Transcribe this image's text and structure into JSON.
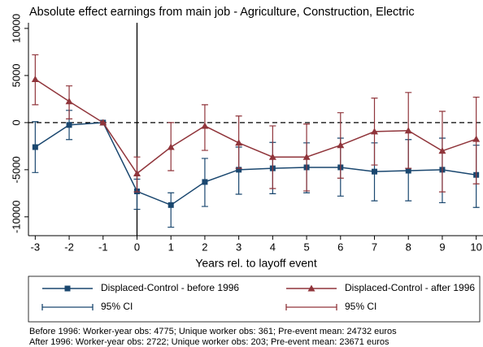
{
  "chart_data": {
    "type": "errorbar-line",
    "title": "Absolute effect earnings from main job - Agriculture, Construction, Electric",
    "x_label": "Years rel. to layoff event",
    "x": [
      -3,
      -2,
      -1,
      0,
      1,
      2,
      3,
      4,
      5,
      6,
      7,
      8,
      9,
      10
    ],
    "xlim": [
      -3.2,
      10.2
    ],
    "xticks": [
      -3,
      -2,
      -1,
      0,
      1,
      2,
      3,
      4,
      5,
      6,
      7,
      8,
      9,
      10
    ],
    "ylim": [
      -12000,
      10600
    ],
    "yticks": [
      10000,
      5000,
      0,
      -5000,
      -10000
    ],
    "hline": 0,
    "vline": 0,
    "series": [
      {
        "name": "Displaced-Control - before 1996",
        "ci_name": "95% CI",
        "color": "#1a476f",
        "marker": "square",
        "values": [
          -2600,
          -250,
          0,
          -7300,
          -8750,
          -6300,
          -5000,
          -4850,
          -4750,
          -4750,
          -5200,
          -5100,
          -5000,
          -5550
        ],
        "ci_low": [
          -5300,
          -1800,
          0,
          -9200,
          -11100,
          -8900,
          -7600,
          -7550,
          -7450,
          -7800,
          -8300,
          -8300,
          -8500,
          -9000
        ],
        "ci_high": [
          100,
          1300,
          0,
          -6000,
          -7450,
          -3800,
          -2600,
          -2100,
          -2150,
          -1650,
          -2150,
          -1800,
          -1650,
          -2400
        ]
      },
      {
        "name": "Displaced-Control - after 1996",
        "ci_name": "95% CI",
        "color": "#90353b",
        "marker": "triangle",
        "values": [
          4600,
          2250,
          0,
          -5400,
          -2600,
          -350,
          -2150,
          -3650,
          -3650,
          -2400,
          -950,
          -850,
          -3000,
          -1750
        ],
        "ci_low": [
          1900,
          400,
          0,
          -7350,
          -5100,
          -2950,
          -4850,
          -7000,
          -7250,
          -5900,
          -4500,
          -4850,
          -7350,
          -6500
        ],
        "ci_high": [
          7200,
          3900,
          0,
          -3650,
          0,
          1900,
          700,
          -350,
          -150,
          1050,
          2600,
          3200,
          1200,
          2700
        ]
      }
    ],
    "notes": [
      "Before 1996: Worker-year obs: 4775; Unique worker obs: 361; Pre-event mean: 24732 euros",
      "After 1996: Worker-year obs: 2722; Unique worker obs: 203; Pre-event mean: 23671 euros"
    ]
  }
}
